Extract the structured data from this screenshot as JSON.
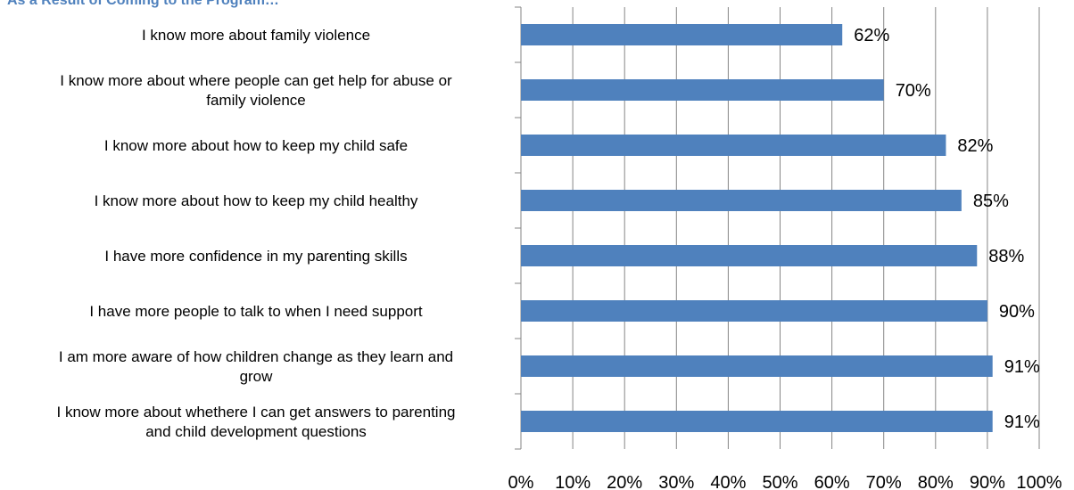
{
  "chart_data": {
    "type": "bar",
    "orientation": "horizontal",
    "title": "As a Result of Coming to the Program…",
    "categories": [
      [
        "I know more about family violence"
      ],
      [
        "I know more about where people can get help for abuse or",
        "family violence"
      ],
      [
        "I know more about how to keep my child safe"
      ],
      [
        "I know more about how to keep my child healthy"
      ],
      [
        "I have more confidence in my parenting skills"
      ],
      [
        "I have more people to talk to when I need support"
      ],
      [
        "I am more aware of how children change as they learn and",
        "grow"
      ],
      [
        "I know more about whethere I can get answers to parenting",
        "and child development questions"
      ]
    ],
    "values": [
      62,
      70,
      82,
      85,
      88,
      90,
      91,
      91
    ],
    "data_labels": [
      "62%",
      "70%",
      "82%",
      "85%",
      "88%",
      "90%",
      "91%",
      "91%"
    ],
    "xlim": [
      0,
      100
    ],
    "x_ticks": [
      "0%",
      "10%",
      "20%",
      "30%",
      "40%",
      "50%",
      "60%",
      "70%",
      "80%",
      "90%",
      "100%"
    ],
    "xlabel": "",
    "ylabel": "",
    "grid": "vertical",
    "legend": "none",
    "bar_color": "#4f81bd",
    "grid_color": "#868686"
  }
}
